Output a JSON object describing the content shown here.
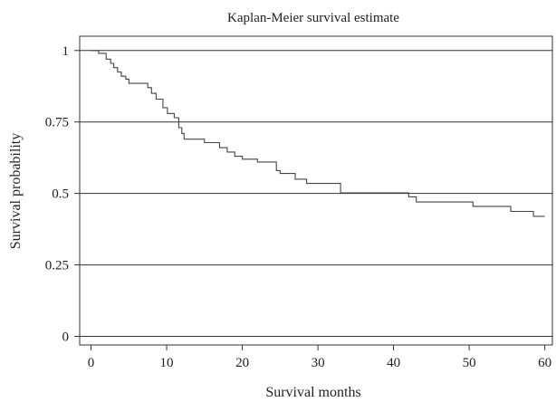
{
  "chart_data": {
    "type": "line",
    "title": "Kaplan-Meier survival estimate",
    "xlabel": "Survival months",
    "ylabel": "Survival probability",
    "xlim": [
      -1.5,
      61
    ],
    "ylim": [
      -0.03,
      1.05
    ],
    "x_ticks": [
      0,
      10,
      20,
      30,
      40,
      50,
      60
    ],
    "x_tick_labels": [
      "0",
      "10",
      "20",
      "30",
      "40",
      "50",
      "60"
    ],
    "y_ticks": [
      0,
      0.25,
      0.5,
      0.75,
      1
    ],
    "y_tick_labels": [
      "0",
      "0.25",
      "0.5",
      "0.75",
      "1"
    ],
    "grid": "horizontal",
    "step": true,
    "series": [
      {
        "color": "#444444",
        "x": [
          0,
          1.0,
          2.0,
          2.6,
          3.0,
          3.5,
          4.0,
          4.6,
          5.0,
          7.5,
          8.0,
          8.6,
          9.5,
          10.1,
          11.0,
          11.6,
          12.0,
          12.3,
          15.0,
          17.0,
          18.0,
          19.0,
          20.0,
          22.0,
          24.5,
          25.0,
          27.0,
          28.5,
          33.0,
          42.0,
          43.0,
          50.5,
          55.5,
          58.5,
          60.0
        ],
        "y": [
          1.0,
          0.99,
          0.97,
          0.955,
          0.94,
          0.925,
          0.91,
          0.9,
          0.885,
          0.87,
          0.85,
          0.83,
          0.8,
          0.78,
          0.765,
          0.73,
          0.71,
          0.69,
          0.678,
          0.66,
          0.645,
          0.63,
          0.62,
          0.61,
          0.58,
          0.57,
          0.55,
          0.535,
          0.502,
          0.488,
          0.47,
          0.455,
          0.437,
          0.42,
          0.42
        ]
      }
    ]
  }
}
